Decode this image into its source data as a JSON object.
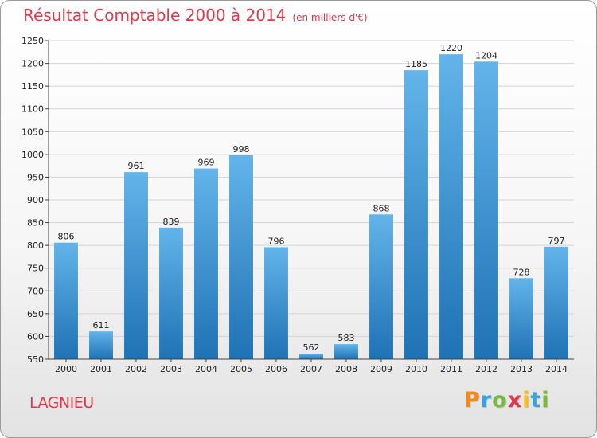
{
  "title": "Résultat Comptable 2000 à 2014",
  "subtitle": "(en milliers d'€)",
  "brand": "LAGNIEU",
  "logo": {
    "letters": [
      "P",
      "r",
      "o",
      "x",
      "i",
      "t",
      "i"
    ],
    "colors": [
      "#f08a1c",
      "#3aa3dd",
      "#7ab840",
      "#e0384a",
      "#f0c020",
      "#3aa3dd",
      "#7ab840"
    ]
  },
  "colors": {
    "accent": "#e0384a",
    "bar_light": "#62b4ea",
    "bar_dark": "#1f72b4"
  },
  "chart_data": {
    "type": "bar",
    "categories": [
      "2000",
      "2001",
      "2002",
      "2003",
      "2004",
      "2005",
      "2006",
      "2007",
      "2008",
      "2009",
      "2010",
      "2011",
      "2012",
      "2013",
      "2014"
    ],
    "values": [
      806,
      611,
      961,
      839,
      969,
      998,
      796,
      562,
      583,
      868,
      1185,
      1220,
      1204,
      728,
      797
    ],
    "title": "Résultat Comptable 2000 à 2014",
    "subtitle": "(en milliers d'€)",
    "xlabel": "",
    "ylabel": "",
    "ylim": [
      550,
      1250
    ],
    "yticks": [
      550,
      600,
      650,
      700,
      750,
      800,
      850,
      900,
      950,
      1000,
      1050,
      1100,
      1150,
      1200,
      1250
    ],
    "grid": true,
    "legend": "none"
  }
}
